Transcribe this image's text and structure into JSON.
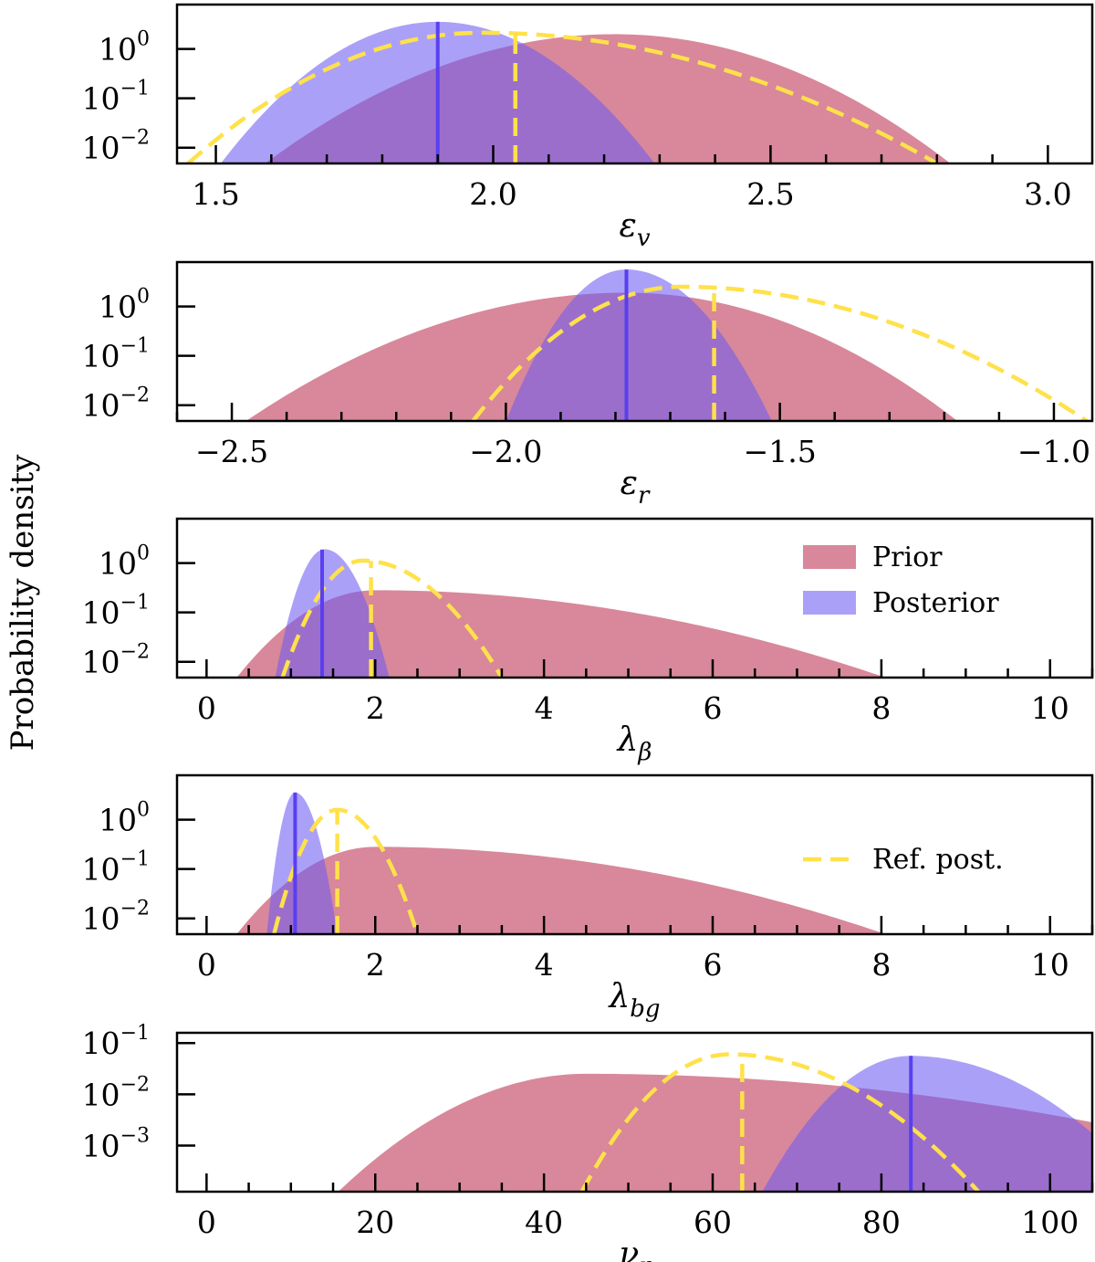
{
  "ylabel": "Probability density",
  "colors": {
    "prior": "#c5506a",
    "posterior": "#6f5cf2",
    "posterior_line": "#5a3ff0",
    "ref": "#ffe14a"
  },
  "legend": {
    "prior": "Prior",
    "posterior": "Posterior",
    "ref": "Ref. post."
  },
  "chart_data": [
    {
      "type": "area",
      "name": "epsilon_v",
      "xlabel": "ε",
      "xlabel_sub": "v",
      "xlim": [
        1.43,
        3.08
      ],
      "major_ticks": [
        1.5,
        2.0,
        2.5,
        3.0
      ],
      "tick_labels": [
        "1.5",
        "2.0",
        "2.5",
        "3.0"
      ],
      "minor_step": 0.1,
      "ylim_log": [
        -2.32,
        0.9
      ],
      "yticks": [
        {
          "exp": 0,
          "label": "0"
        },
        {
          "exp": -1,
          "label": "−1"
        },
        {
          "exp": -2,
          "label": "−2"
        }
      ],
      "prior": {
        "peak_x": 2.22,
        "peak_log": 0.3,
        "left_x": 1.52,
        "right_x": 2.89
      },
      "posterior": {
        "peak_x": 1.9,
        "peak_log": 0.55,
        "left_x": 1.47,
        "right_x": 2.33
      },
      "ref": {
        "peak_x": 1.98,
        "peak_log": 0.33,
        "left_x": 1.45,
        "right_x": 2.8
      },
      "posterior_marker_x": 1.9,
      "ref_marker_x": 2.04
    },
    {
      "type": "area",
      "name": "epsilon_r",
      "xlabel": "ε",
      "xlabel_sub": "r",
      "xlim": [
        -2.6,
        -0.93
      ],
      "major_ticks": [
        -2.5,
        -2.0,
        -1.5,
        -1.0
      ],
      "tick_labels": [
        "−2.5",
        "−2.0",
        "−1.5",
        "−1.0"
      ],
      "minor_step": 0.1,
      "ylim_log": [
        -2.32,
        0.9
      ],
      "yticks": [
        {
          "exp": 0,
          "label": "0"
        },
        {
          "exp": -1,
          "label": "−1"
        },
        {
          "exp": -2,
          "label": "−2"
        }
      ],
      "prior": {
        "peak_x": -1.78,
        "peak_log": 0.28,
        "left_x": -2.55,
        "right_x": -1.11
      },
      "posterior": {
        "peak_x": -1.78,
        "peak_log": 0.75,
        "left_x": -2.02,
        "right_x": -1.49
      },
      "ref": {
        "peak_x": -1.68,
        "peak_log": 0.4,
        "left_x": -2.06,
        "right_x": -0.94
      },
      "posterior_marker_x": -1.78,
      "ref_marker_x": -1.62
    },
    {
      "type": "area",
      "name": "lambda_beta",
      "xlabel": "λ",
      "xlabel_sub": "β",
      "xlim": [
        -0.35,
        10.5
      ],
      "major_ticks": [
        0,
        2,
        4,
        6,
        8,
        10
      ],
      "tick_labels": [
        "0",
        "2",
        "4",
        "6",
        "8",
        "10"
      ],
      "minor_step": 0.5,
      "ylim_log": [
        -2.32,
        0.9
      ],
      "yticks": [
        {
          "exp": 0,
          "label": "0"
        },
        {
          "exp": -1,
          "label": "−1"
        },
        {
          "exp": -2,
          "label": "−2"
        }
      ],
      "legend_entries": [
        "prior",
        "posterior"
      ],
      "prior": {
        "peak_x": 2.0,
        "peak_log": -0.55,
        "left_x": 0.1,
        "right_x": 9.0
      },
      "posterior": {
        "peak_x": 1.4,
        "peak_log": 0.28,
        "left_x": 0.75,
        "right_x": 2.25
      },
      "ref": {
        "peak_x": 1.85,
        "peak_log": 0.05,
        "left_x": 0.9,
        "right_x": 3.5
      },
      "posterior_marker_x": 1.37,
      "ref_marker_x": 1.95
    },
    {
      "type": "area",
      "name": "lambda_bg",
      "xlabel": "λ",
      "xlabel_sub": "bg",
      "xlim": [
        -0.35,
        10.5
      ],
      "major_ticks": [
        0,
        2,
        4,
        6,
        8,
        10
      ],
      "tick_labels": [
        "0",
        "2",
        "4",
        "6",
        "8",
        "10"
      ],
      "minor_step": 0.5,
      "ylim_log": [
        -2.32,
        0.9
      ],
      "yticks": [
        {
          "exp": 0,
          "label": "0"
        },
        {
          "exp": -1,
          "label": "−1"
        },
        {
          "exp": -2,
          "label": "−2"
        }
      ],
      "legend_entries": [
        "ref"
      ],
      "prior": {
        "peak_x": 2.0,
        "peak_log": -0.55,
        "left_x": 0.1,
        "right_x": 9.0
      },
      "posterior": {
        "peak_x": 1.05,
        "peak_log": 0.55,
        "left_x": 0.68,
        "right_x": 1.6
      },
      "ref": {
        "peak_x": 1.55,
        "peak_log": 0.2,
        "left_x": 0.8,
        "right_x": 2.5
      },
      "posterior_marker_x": 1.05,
      "ref_marker_x": 1.55
    },
    {
      "type": "area",
      "name": "nu_r",
      "xlabel": "ν",
      "xlabel_sub": "r",
      "xlim": [
        -3.5,
        105
      ],
      "major_ticks": [
        0,
        20,
        40,
        60,
        80,
        100
      ],
      "tick_labels": [
        "0",
        "20",
        "40",
        "60",
        "80",
        "100"
      ],
      "minor_step": 5,
      "ylim_log": [
        -3.9,
        -0.8
      ],
      "yticks": [
        {
          "exp": -1,
          "label": "−1"
        },
        {
          "exp": -2,
          "label": "−2"
        },
        {
          "exp": -3,
          "label": "−3"
        }
      ],
      "prior": {
        "peak_x": 45,
        "peak_log": -1.6,
        "left_x": 12,
        "right_x": 150
      },
      "posterior": {
        "peak_x": 83.5,
        "peak_log": -1.25,
        "left_x": 64,
        "right_x": 115
      },
      "ref": {
        "peak_x": 62,
        "peak_log": -1.22,
        "left_x": 44.5,
        "right_x": 91.5
      },
      "posterior_marker_x": 83.5,
      "ref_marker_x": 63.5
    }
  ]
}
